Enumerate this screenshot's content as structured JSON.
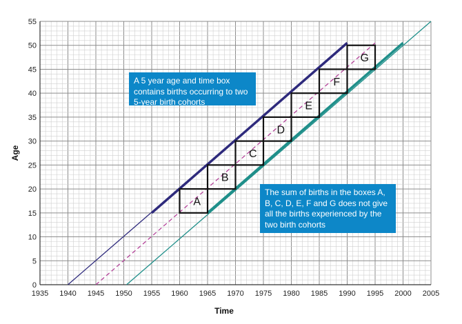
{
  "chart_data": {
    "type": "line",
    "xlabel": "Time",
    "ylabel": "Age",
    "xlim": [
      1935,
      2005
    ],
    "ylim": [
      0,
      55
    ],
    "x_ticks": [
      "1935",
      "1940",
      "1945",
      "1950",
      "1955",
      "1960",
      "1965",
      "1970",
      "1975",
      "1980",
      "1985",
      "1990",
      "1995",
      "2000",
      "2005"
    ],
    "y_ticks": [
      "0",
      "5",
      "10",
      "15",
      "20",
      "25",
      "30",
      "35",
      "40",
      "45",
      "50",
      "55"
    ],
    "grid": {
      "major": 5,
      "minor": 1
    },
    "colors": {
      "navy": "#2e2a7c",
      "dashed": "#b4439a",
      "teal": "#1f8f8a",
      "callout": "#0d87c8",
      "major_grid": "#8c8c8c",
      "minor_grid": "#cfcfcf"
    },
    "series": [
      {
        "style": "solid",
        "color": "navy",
        "points": [
          [
            1940,
            0
          ],
          [
            1990,
            50.5
          ]
        ]
      },
      {
        "style": "dashed",
        "color": "dashed",
        "points": [
          [
            1945,
            0
          ],
          [
            1995,
            50.5
          ]
        ]
      },
      {
        "style": "solid",
        "color": "teal",
        "points": [
          [
            1950.5,
            0
          ],
          [
            2005,
            55
          ]
        ]
      }
    ],
    "bold_segments": [
      {
        "color": "navy",
        "points": [
          [
            1955,
            15
          ],
          [
            1990,
            50.5
          ]
        ]
      },
      {
        "color": "teal",
        "points": [
          [
            1965,
            15
          ],
          [
            2000,
            50.5
          ]
        ]
      }
    ],
    "boxes": [
      {
        "label": "A",
        "x": [
          1960,
          1965
        ],
        "y": [
          15,
          20
        ]
      },
      {
        "label": "B",
        "x": [
          1965,
          1970
        ],
        "y": [
          20,
          25
        ]
      },
      {
        "label": "C",
        "x": [
          1970,
          1975
        ],
        "y": [
          25,
          30
        ]
      },
      {
        "label": "D",
        "x": [
          1975,
          1980
        ],
        "y": [
          30,
          35
        ]
      },
      {
        "label": "E",
        "x": [
          1980,
          1985
        ],
        "y": [
          35,
          40
        ]
      },
      {
        "label": "F",
        "x": [
          1985,
          1990
        ],
        "y": [
          40,
          45
        ]
      },
      {
        "label": "G",
        "x": [
          1990,
          1995
        ],
        "y": [
          45,
          50
        ]
      }
    ],
    "annotations": [
      "A 5 year age and time box contains births occurring to two 5-year birth cohorts",
      "The sum of births in the boxes A, B, C, D, E, F and G does not give all the births experienced by the two birth cohorts"
    ]
  }
}
